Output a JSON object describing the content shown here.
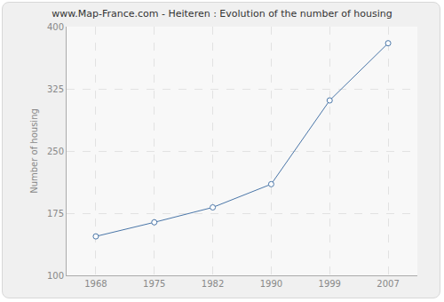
{
  "chart_data": {
    "type": "line",
    "title": "www.Map-France.com - Heiteren : Evolution of the number of housing",
    "y_label": "Number of housing",
    "categories": [
      "1968",
      "1975",
      "1982",
      "1990",
      "1999",
      "2007"
    ],
    "values": [
      147,
      164,
      182,
      210,
      311,
      380
    ],
    "color": "#4a76a8",
    "marker": "circle",
    "ylim": [
      100,
      400
    ],
    "yticks": [
      100,
      175,
      250,
      325,
      400
    ],
    "grid": true
  }
}
